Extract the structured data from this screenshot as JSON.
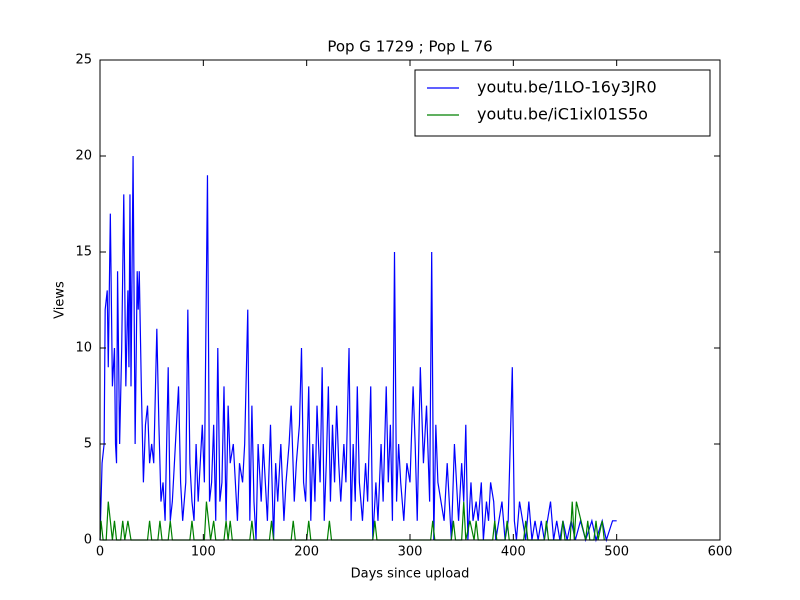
{
  "chart_data": {
    "type": "line",
    "title": "Pop G 1729 ; Pop L 76",
    "x_label": "Days since upload",
    "y_label": "Views",
    "xlim": [
      0,
      600
    ],
    "xticks": [
      0,
      100,
      200,
      300,
      400,
      500,
      600
    ],
    "ylim": [
      0,
      25
    ],
    "yticks": [
      0,
      5,
      10,
      15,
      20,
      25
    ],
    "legend": "upper right",
    "grid": false,
    "series": [
      {
        "name": "youtu.be/1LO-16y3JR0",
        "color": "#0000ff",
        "x": [
          0,
          2,
          4,
          5,
          7,
          8,
          10,
          12,
          14,
          15,
          16,
          17,
          19,
          21,
          23,
          25,
          27,
          28,
          29,
          30,
          32,
          34,
          36,
          37,
          38,
          40,
          42,
          44,
          46,
          48,
          50,
          52,
          55,
          57,
          59,
          61,
          63,
          66,
          68,
          70,
          72,
          76,
          78,
          80,
          83,
          85,
          87,
          89,
          91,
          93,
          95,
          97,
          99,
          101,
          104,
          106,
          108,
          110,
          112,
          114,
          116,
          118,
          120,
          122,
          124,
          126,
          129,
          131,
          133,
          135,
          138,
          140,
          143,
          145,
          147,
          149,
          151,
          153,
          156,
          158,
          160,
          162,
          165,
          168,
          170,
          172,
          175,
          178,
          180,
          183,
          185,
          188,
          190,
          193,
          195,
          197,
          199,
          202,
          204,
          206,
          208,
          210,
          213,
          215,
          217,
          219,
          221,
          223,
          225,
          227,
          229,
          231,
          233,
          236,
          238,
          241,
          243,
          245,
          247,
          249,
          251,
          254,
          257,
          259,
          262,
          264,
          267,
          269,
          272,
          274,
          277,
          279,
          281,
          283,
          285,
          287,
          289,
          291,
          294,
          297,
          300,
          303,
          305,
          307,
          310,
          313,
          316,
          319,
          321,
          323,
          325,
          327,
          330,
          333,
          336,
          338,
          340,
          343,
          345,
          347,
          350,
          352,
          354,
          356,
          359,
          361,
          364,
          366,
          369,
          371,
          374,
          376,
          378,
          381,
          383,
          386,
          389,
          392,
          395,
          399,
          401,
          403,
          406,
          409,
          412,
          415,
          418,
          421,
          424,
          427,
          430,
          433,
          436,
          439,
          442,
          445,
          448,
          452,
          456,
          460,
          465,
          470,
          476,
          480,
          486,
          490,
          496,
          500
        ],
        "values": [
          0,
          4,
          5,
          12,
          13,
          9,
          17,
          8,
          10,
          5,
          4,
          14,
          5,
          10,
          18,
          8,
          13,
          9,
          18,
          8,
          20,
          5,
          14,
          12,
          14,
          8,
          3,
          6,
          7,
          4,
          5,
          4,
          11,
          6,
          2,
          3,
          1,
          9,
          1,
          2,
          4,
          8,
          3,
          1,
          3,
          12,
          4,
          2,
          1,
          5,
          2,
          4,
          6,
          3,
          19,
          2,
          3,
          6,
          1,
          10,
          2,
          3,
          8,
          1,
          7,
          4,
          5,
          3,
          1,
          4,
          3,
          5,
          12,
          1,
          7,
          2,
          0,
          5,
          2,
          5,
          3,
          1,
          6,
          0,
          4,
          2,
          5,
          1,
          3,
          5,
          7,
          2,
          4,
          6,
          10,
          3,
          2,
          8,
          1,
          5,
          2,
          7,
          3,
          9,
          1,
          4,
          8,
          2,
          6,
          3,
          7,
          4,
          2,
          5,
          3,
          10,
          1,
          5,
          2,
          8,
          3,
          1,
          4,
          2,
          8,
          0,
          3,
          1,
          5,
          2,
          8,
          3,
          6,
          1,
          15,
          2,
          5,
          3,
          1,
          4,
          3,
          8,
          5,
          1,
          9,
          4,
          7,
          2,
          15,
          0,
          6,
          3,
          2,
          1,
          4,
          2,
          0,
          5,
          3,
          1,
          4,
          2,
          6,
          0,
          3,
          1,
          2,
          1,
          3,
          0,
          2,
          1,
          3,
          2,
          0,
          1,
          2,
          0,
          1,
          9,
          1,
          0,
          2,
          1,
          0,
          2,
          0,
          1,
          0,
          1,
          0,
          1,
          2,
          0,
          1,
          0,
          1,
          0,
          1,
          0,
          1,
          0,
          1,
          0,
          1,
          0,
          1,
          1
        ]
      },
      {
        "name": "youtu.be/iC1ixl01S5o",
        "color": "#008000",
        "x": [
          0,
          1,
          3,
          6,
          8,
          10,
          12,
          14,
          16,
          20,
          22,
          24,
          27,
          30,
          46,
          48,
          50,
          56,
          58,
          60,
          66,
          68,
          70,
          87,
          89,
          91,
          101,
          103,
          105,
          107,
          110,
          112,
          120,
          122,
          124,
          126,
          128,
          145,
          147,
          149,
          164,
          166,
          168,
          185,
          187,
          189,
          200,
          202,
          204,
          220,
          222,
          224,
          264,
          266,
          268,
          320,
          322,
          324,
          340,
          342,
          344,
          350,
          352,
          354,
          358,
          362,
          364,
          366,
          380,
          382,
          384,
          392,
          394,
          396,
          410,
          412,
          414,
          430,
          432,
          434,
          446,
          448,
          450,
          455,
          457,
          459,
          461,
          470,
          472,
          474,
          478,
          480,
          482,
          486,
          488
        ],
        "values": [
          0,
          1,
          0,
          0,
          2,
          1,
          0,
          1,
          0,
          0,
          1,
          0,
          1,
          0,
          0,
          1,
          0,
          0,
          1,
          0,
          0,
          1,
          0,
          0,
          1,
          0,
          0,
          2,
          1,
          0,
          1,
          0,
          0,
          1,
          0,
          1,
          0,
          0,
          1,
          0,
          0,
          1,
          0,
          0,
          1,
          0,
          0,
          1,
          0,
          0,
          1,
          0,
          0,
          1,
          0,
          0,
          1,
          0,
          0,
          1,
          0,
          0,
          2,
          0,
          1,
          0,
          1,
          0,
          0,
          1,
          0,
          0,
          1,
          0,
          0,
          1,
          0,
          0,
          1,
          0,
          0,
          1,
          0,
          0,
          2,
          0,
          2,
          0,
          1,
          0,
          0,
          1,
          0,
          1,
          0
        ]
      }
    ]
  }
}
